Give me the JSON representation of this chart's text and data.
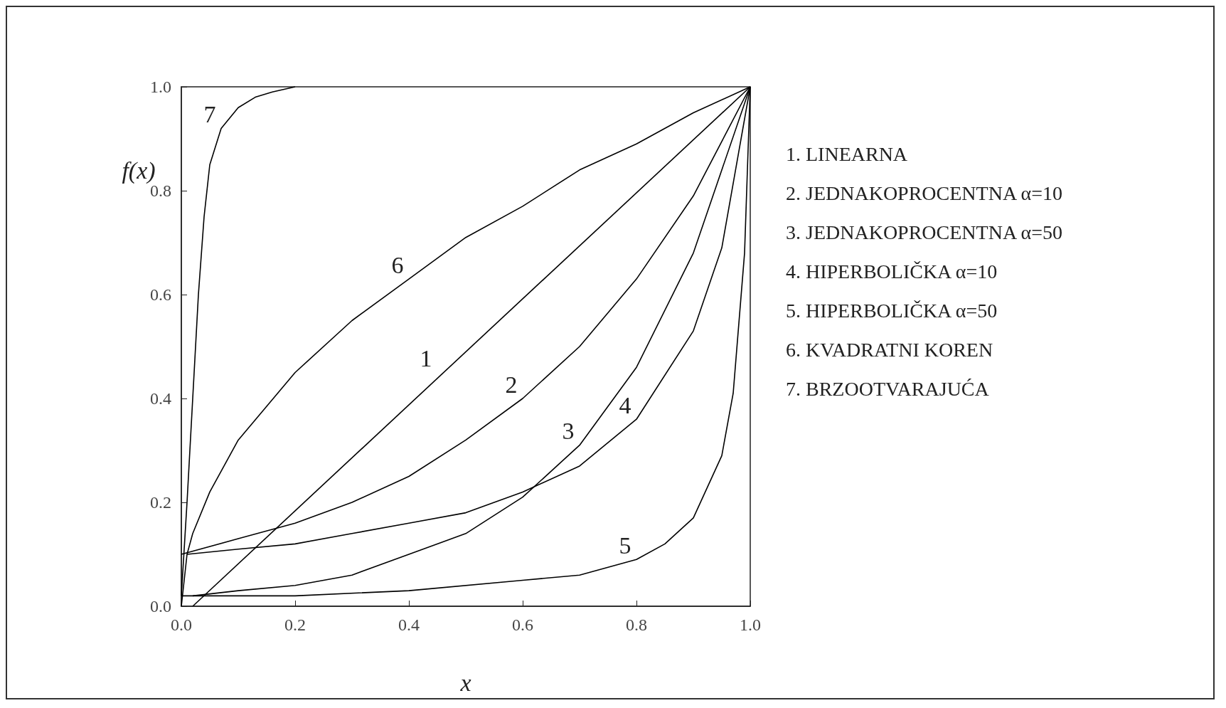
{
  "chart_data": {
    "type": "line",
    "xlabel": "x",
    "ylabel": "f(x)",
    "xlim": [
      0,
      1
    ],
    "ylim": [
      0,
      1
    ],
    "xticks": [
      {
        "value": 0,
        "label": "0.0"
      },
      {
        "value": 0.2,
        "label": "0.2"
      },
      {
        "value": 0.4,
        "label": "0.4"
      },
      {
        "value": 0.6,
        "label": "0.6"
      },
      {
        "value": 0.8,
        "label": "0.8"
      },
      {
        "value": 1,
        "label": "1.0"
      }
    ],
    "yticks": [
      {
        "value": 0,
        "label": "0.0"
      },
      {
        "value": 0.2,
        "label": "0.2"
      },
      {
        "value": 0.4,
        "label": "0.4"
      },
      {
        "value": 0.6,
        "label": "0.6"
      },
      {
        "value": 0.8,
        "label": "0.8"
      },
      {
        "value": 1,
        "label": "1.0"
      }
    ],
    "grid": false,
    "marker": "none",
    "line_style": "solid",
    "series": [
      {
        "color": "#000000",
        "x": [
          0.02,
          1
        ],
        "values": [
          0,
          1
        ]
      },
      {
        "color": "#000000",
        "x": [
          0,
          0.1,
          0.2,
          0.3,
          0.4,
          0.5,
          0.6,
          0.7,
          0.8,
          0.9,
          1
        ],
        "values": [
          0.1,
          0.13,
          0.16,
          0.2,
          0.25,
          0.32,
          0.4,
          0.5,
          0.63,
          0.79,
          1
        ]
      },
      {
        "color": "#000000",
        "x": [
          0.02,
          0.1,
          0.2,
          0.3,
          0.4,
          0.5,
          0.6,
          0.7,
          0.8,
          0.9,
          1
        ],
        "values": [
          0.02,
          0.03,
          0.04,
          0.06,
          0.1,
          0.14,
          0.21,
          0.31,
          0.46,
          0.68,
          1
        ]
      },
      {
        "color": "#000000",
        "x": [
          0.01,
          0.1,
          0.2,
          0.3,
          0.4,
          0.5,
          0.6,
          0.7,
          0.8,
          0.9,
          0.95,
          1
        ],
        "values": [
          0.1,
          0.11,
          0.12,
          0.14,
          0.16,
          0.18,
          0.22,
          0.27,
          0.36,
          0.53,
          0.69,
          1
        ]
      },
      {
        "color": "#000000",
        "x": [
          0,
          0.2,
          0.4,
          0.6,
          0.7,
          0.8,
          0.85,
          0.9,
          0.95,
          0.97,
          0.99,
          1
        ],
        "values": [
          0.02,
          0.02,
          0.03,
          0.05,
          0.06,
          0.09,
          0.12,
          0.17,
          0.29,
          0.41,
          0.68,
          1
        ]
      },
      {
        "color": "#000000",
        "x": [
          0,
          0.01,
          0.02,
          0.05,
          0.1,
          0.2,
          0.3,
          0.4,
          0.5,
          0.6,
          0.7,
          0.8,
          0.9,
          1
        ],
        "values": [
          0,
          0.1,
          0.14,
          0.22,
          0.32,
          0.45,
          0.55,
          0.63,
          0.71,
          0.77,
          0.84,
          0.89,
          0.95,
          1
        ]
      },
      {
        "color": "#000000",
        "x": [
          0,
          0.01,
          0.02,
          0.03,
          0.04,
          0.05,
          0.07,
          0.1,
          0.13,
          0.16,
          0.2
        ],
        "values": [
          0.02,
          0.2,
          0.4,
          0.6,
          0.75,
          0.85,
          0.92,
          0.96,
          0.98,
          0.99,
          1
        ]
      }
    ],
    "annotations": [
      "1. LINEARNA",
      "2. JEDNAKOPROCENTNA α=10",
      "3. JEDNAKOPROCENTNA α=50",
      "4. HIPERBOLIČKA α=10",
      "5. HIPERBOLIČKA α=50",
      "6. KVADRATNI KOREN",
      "7. BRZOOTVARAJUĆA",
      {
        "text": "1",
        "x": 0.45,
        "y": 0.45
      },
      {
        "text": "2",
        "x": 0.6,
        "y": 0.4
      },
      {
        "text": "3",
        "x": 0.7,
        "y": 0.31
      },
      {
        "text": "4",
        "x": 0.8,
        "y": 0.36
      },
      {
        "text": "5",
        "x": 0.8,
        "y": 0.09
      },
      {
        "text": "6",
        "x": 0.4,
        "y": 0.63
      },
      {
        "text": "7",
        "x": 0.07,
        "y": 0.92
      }
    ]
  }
}
